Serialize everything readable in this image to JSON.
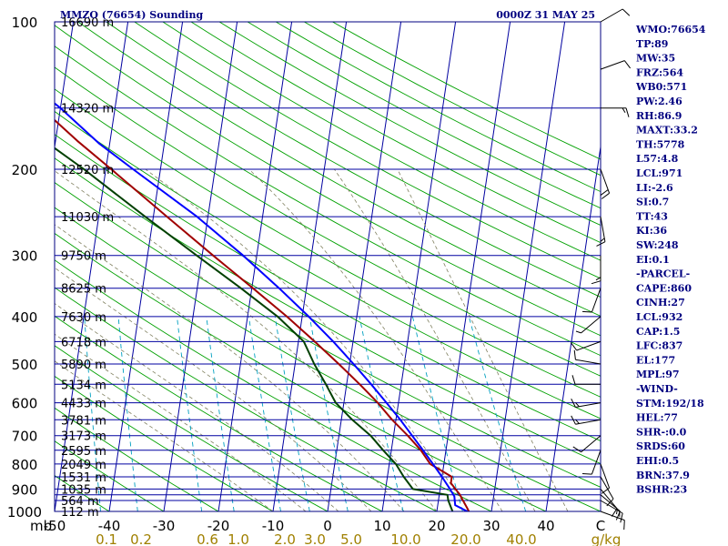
{
  "station_title": "MMZO (76654) Sounding",
  "valid_time": "0000Z 31 MAY 25",
  "colors": {
    "frame": "#000080",
    "isobar": "#0000a0",
    "temperature": "#a00000",
    "dewpoint": "#004000",
    "parcel": "#0000ff",
    "isotherm": "#0000a0",
    "dry_adiabat": "#00a000",
    "moist_adiabat": "#808060",
    "mixing_ratio": "#00a0c0",
    "wind": "#000000",
    "labels": "#000080"
  },
  "indices": [
    "WMO:76654",
    "TP:89",
    "MW:35",
    "FRZ:564",
    "WB0:571",
    "PW:2.46",
    "RH:86.9",
    "MAXT:33.2",
    "TH:5778",
    "L57:4.8",
    "LCL:971",
    "LI:-2.6",
    "SI:0.7",
    "TT:43",
    "KI:36",
    "SW:248",
    "EI:0.1",
    "-PARCEL-",
    "CAPE:860",
    "CINH:27",
    "LCL:932",
    "CAP:1.5",
    "LFC:837",
    "EL:177",
    "MPL:97",
    "-WIND-",
    "STM:192/18",
    "HEL:77",
    "SHR-:0.0",
    "SRDS:60",
    "EHI:0.5",
    "BRN:37.9",
    "BSHR:23"
  ],
  "chart_data": {
    "type": "line",
    "subtype": "skew-t log-p",
    "title": "MMZO (76654) Sounding",
    "y_axis": {
      "unit_label": "mb",
      "scale": "log",
      "range": [
        1000,
        100
      ],
      "ticks": [
        "100",
        "200",
        "300",
        "400",
        "500",
        "600",
        "700",
        "800",
        "900",
        "1000"
      ]
    },
    "isobars": [
      100,
      150,
      200,
      250,
      300,
      350,
      400,
      450,
      500,
      550,
      600,
      650,
      700,
      750,
      800,
      850,
      900,
      925,
      950,
      1000
    ],
    "height_labels": [
      {
        "p": 100,
        "label": "16690 m"
      },
      {
        "p": 150,
        "label": "14320 m"
      },
      {
        "p": 200,
        "label": "12520 m"
      },
      {
        "p": 250,
        "label": "11030 m"
      },
      {
        "p": 300,
        "label": "9750 m"
      },
      {
        "p": 350,
        "label": "8625 m"
      },
      {
        "p": 400,
        "label": "7630 m"
      },
      {
        "p": 450,
        "label": "6718 m"
      },
      {
        "p": 500,
        "label": "5890 m"
      },
      {
        "p": 550,
        "label": "5134 m"
      },
      {
        "p": 600,
        "label": "4433 m"
      },
      {
        "p": 650,
        "label": "3781 m"
      },
      {
        "p": 700,
        "label": "3173 m"
      },
      {
        "p": 750,
        "label": "2595 m"
      },
      {
        "p": 800,
        "label": "2049 m"
      },
      {
        "p": 850,
        "label": "1531 m"
      },
      {
        "p": 900,
        "label": "1035 m"
      },
      {
        "p": 950,
        "label": "564 m"
      },
      {
        "p": 1000,
        "label": "112 m"
      }
    ],
    "x_axis": {
      "unit": "C",
      "range": [
        -50,
        50
      ],
      "ticks": [
        "-50",
        "-40",
        "-30",
        "-20",
        "-10",
        "0",
        "10",
        "20",
        "30",
        "40",
        "C"
      ]
    },
    "mixing_ratio_labels": [
      "0.1",
      "0.2",
      "0.6",
      "1.0",
      "2.0",
      "3.0",
      "5.0",
      "10.0",
      "20.0",
      "40.0",
      "g/kg"
    ],
    "series": [
      {
        "key": "temperature",
        "points": [
          [
            1005,
            26.0
          ],
          [
            985,
            25.5
          ],
          [
            950,
            24.5
          ],
          [
            925,
            23.8
          ],
          [
            900,
            22.8
          ],
          [
            875,
            21.8
          ],
          [
            850,
            21.8
          ],
          [
            800,
            17.5
          ],
          [
            750,
            15.4
          ],
          [
            700,
            12.6
          ],
          [
            650,
            9.3
          ],
          [
            600,
            6.2
          ],
          [
            550,
            2.4
          ],
          [
            500,
            -2.0
          ],
          [
            450,
            -7.0
          ],
          [
            400,
            -12.8
          ],
          [
            350,
            -19.8
          ],
          [
            300,
            -28.0
          ],
          [
            250,
            -37.5
          ],
          [
            200,
            -49.0
          ],
          [
            175,
            -56.0
          ],
          [
            150,
            -63.5
          ],
          [
            125,
            -74.5
          ],
          [
            110,
            -77.5
          ],
          [
            100,
            -75.0
          ]
        ]
      },
      {
        "key": "dewpoint",
        "points": [
          [
            1005,
            23.0
          ],
          [
            950,
            21.8
          ],
          [
            925,
            21.5
          ],
          [
            900,
            15.0
          ],
          [
            850,
            13.0
          ],
          [
            800,
            11.2
          ],
          [
            750,
            8.5
          ],
          [
            700,
            5.8
          ],
          [
            650,
            2.0
          ],
          [
            600,
            -1.5
          ],
          [
            550,
            -3.8
          ],
          [
            500,
            -6.5
          ],
          [
            450,
            -9.0
          ],
          [
            400,
            -14.5
          ],
          [
            350,
            -22.0
          ],
          [
            300,
            -31.0
          ],
          [
            250,
            -41.5
          ],
          [
            200,
            -54.0
          ],
          [
            175,
            -62.0
          ],
          [
            150,
            -70.0
          ],
          [
            125,
            -82.0
          ],
          [
            110,
            -86.0
          ],
          [
            100,
            -88.0
          ]
        ]
      },
      {
        "key": "parcel",
        "points": [
          [
            1005,
            26.0
          ],
          [
            971,
            23.2
          ],
          [
            932,
            22.8
          ],
          [
            900,
            21.8
          ],
          [
            850,
            20.0
          ],
          [
            800,
            18.0
          ],
          [
            750,
            15.8
          ],
          [
            700,
            13.4
          ],
          [
            650,
            10.8
          ],
          [
            600,
            7.8
          ],
          [
            550,
            4.5
          ],
          [
            500,
            0.7
          ],
          [
            450,
            -3.6
          ],
          [
            400,
            -8.8
          ],
          [
            350,
            -15.0
          ],
          [
            300,
            -22.5
          ],
          [
            250,
            -32.0
          ],
          [
            200,
            -45.0
          ],
          [
            177,
            -52.0
          ],
          [
            150,
            -60.0
          ],
          [
            125,
            -70.0
          ],
          [
            110,
            -76.0
          ]
        ]
      }
    ],
    "wind_barbs": [
      {
        "p": 1000,
        "dir": 110,
        "spd": 10
      },
      {
        "p": 950,
        "dir": 120,
        "spd": 15
      },
      {
        "p": 925,
        "dir": 130,
        "spd": 15
      },
      {
        "p": 900,
        "dir": 140,
        "spd": 10
      },
      {
        "p": 850,
        "dir": 150,
        "spd": 10
      },
      {
        "p": 800,
        "dir": 160,
        "spd": 10
      },
      {
        "p": 750,
        "dir": 200,
        "spd": 10
      },
      {
        "p": 700,
        "dir": 230,
        "spd": 10
      },
      {
        "p": 650,
        "dir": 260,
        "spd": 15
      },
      {
        "p": 600,
        "dir": 260,
        "spd": 15
      },
      {
        "p": 550,
        "dir": 270,
        "spd": 10
      },
      {
        "p": 500,
        "dir": 280,
        "spd": 10
      },
      {
        "p": 450,
        "dir": 250,
        "spd": 10
      },
      {
        "p": 400,
        "dir": 230,
        "spd": 5
      },
      {
        "p": 350,
        "dir": 200,
        "spd": 10
      },
      {
        "p": 300,
        "dir": 180,
        "spd": 15
      },
      {
        "p": 250,
        "dir": 170,
        "spd": 15
      },
      {
        "p": 200,
        "dir": 160,
        "spd": 20
      },
      {
        "p": 150,
        "dir": 90,
        "spd": 15
      },
      {
        "p": 125,
        "dir": 70,
        "spd": 10
      },
      {
        "p": 100,
        "dir": 60,
        "spd": 10
      }
    ]
  }
}
